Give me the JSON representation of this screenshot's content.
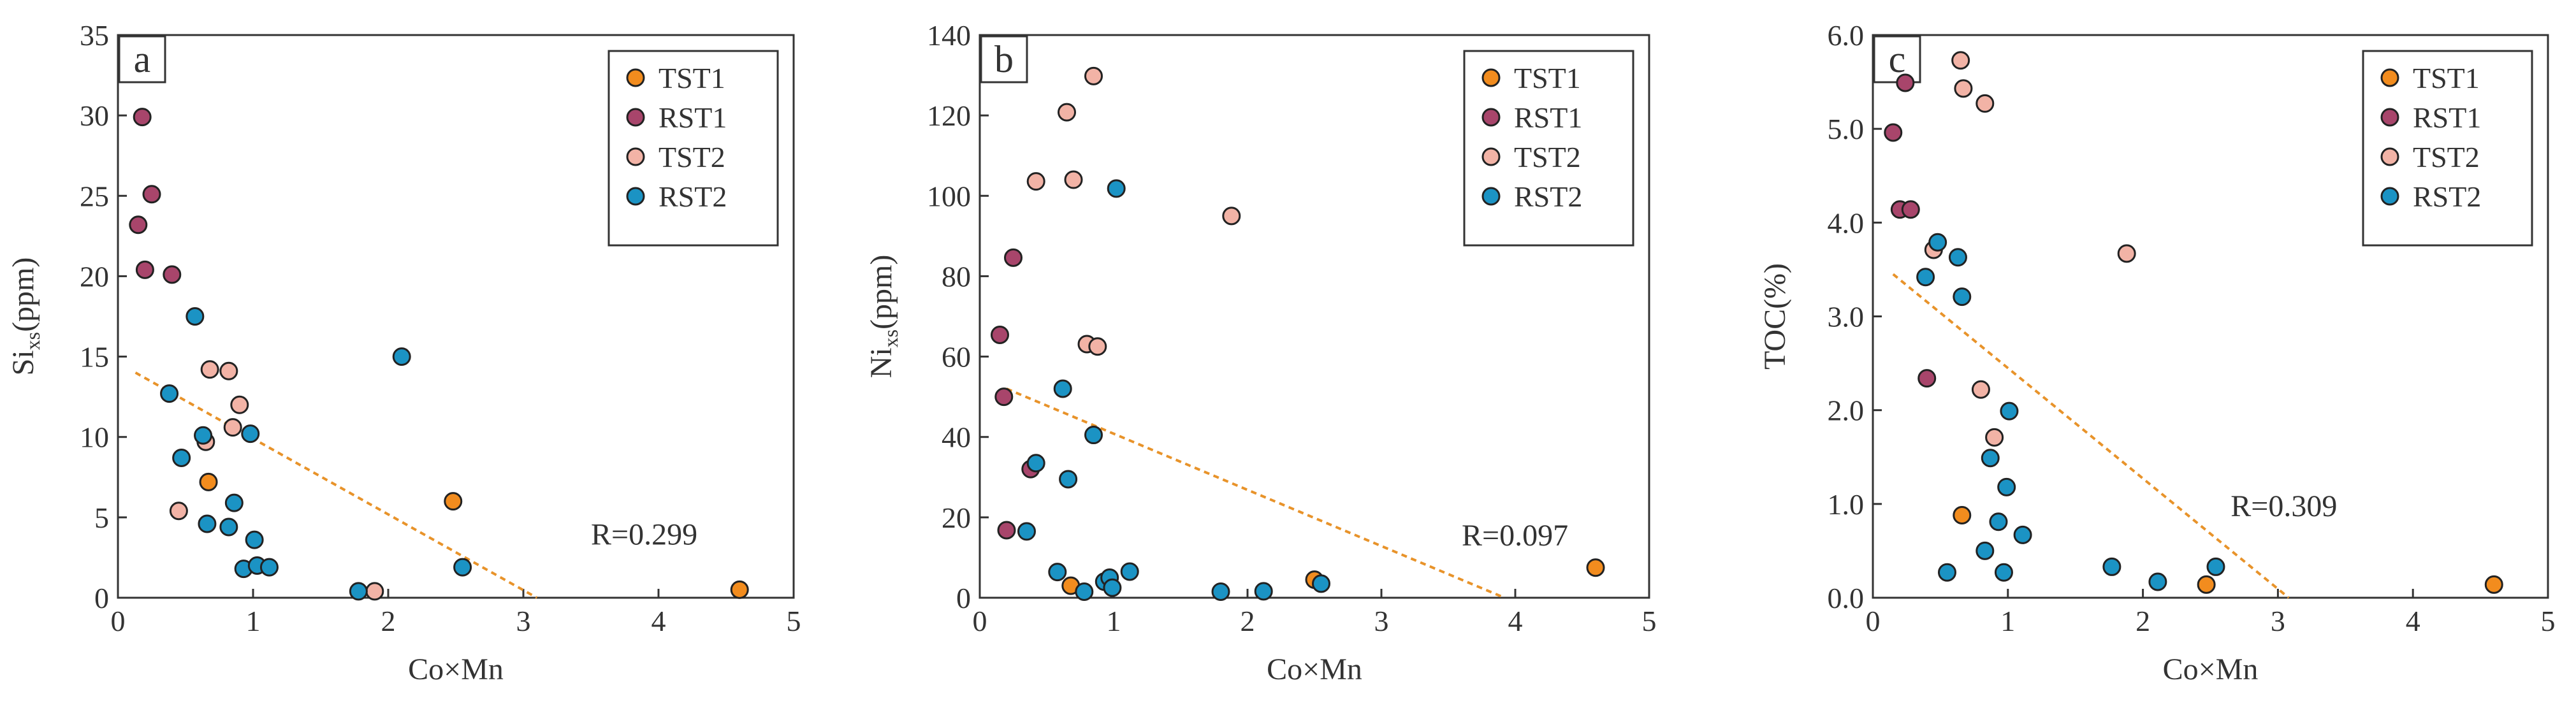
{
  "colors": {
    "TST1": "#f28c1e",
    "RST1": "#a8456b",
    "TST2": "#f2b3a6",
    "RST2": "#1b93c4",
    "trend": "#e8932a",
    "frame": "#333333"
  },
  "legend": [
    "TST1",
    "RST1",
    "TST2",
    "RST2"
  ],
  "chart_data": [
    {
      "type": "scatter",
      "panel": "a",
      "xlabel": "Co×Mn",
      "ylabel": {
        "base": "Si",
        "sub": "xs",
        "suffix": "(ppm)"
      },
      "xlim": [
        0,
        5
      ],
      "ylim": [
        0,
        35
      ],
      "xticks": [
        0,
        1,
        2,
        3,
        4,
        5
      ],
      "yticks": [
        0,
        5,
        10,
        15,
        20,
        25,
        30,
        35
      ],
      "ytick_labels": [
        "0",
        "5",
        "10",
        "15",
        "20",
        "25",
        "30",
        "35"
      ],
      "trend": {
        "x": [
          0.13,
          3.1
        ],
        "y": [
          14,
          0
        ]
      },
      "r_label": "R=0.299",
      "r_pos": [
        3.5,
        3.3
      ],
      "series": [
        {
          "name": "TST1",
          "points": [
            [
              0.67,
              7.2
            ],
            [
              2.48,
              6.0
            ],
            [
              4.6,
              0.5
            ]
          ]
        },
        {
          "name": "RST1",
          "points": [
            [
              0.15,
              23.2
            ],
            [
              0.18,
              29.9
            ],
            [
              0.2,
              20.4
            ],
            [
              0.25,
              25.1
            ],
            [
              0.4,
              20.1
            ]
          ]
        },
        {
          "name": "TST2",
          "points": [
            [
              0.45,
              5.4
            ],
            [
              0.65,
              9.7
            ],
            [
              0.68,
              14.2
            ],
            [
              0.82,
              14.1
            ],
            [
              0.85,
              10.6
            ],
            [
              0.9,
              12.0
            ],
            [
              1.9,
              0.4
            ]
          ]
        },
        {
          "name": "RST2",
          "points": [
            [
              0.38,
              12.7
            ],
            [
              0.47,
              8.7
            ],
            [
              0.57,
              17.5
            ],
            [
              0.63,
              10.1
            ],
            [
              0.66,
              4.6
            ],
            [
              0.82,
              4.4
            ],
            [
              0.86,
              5.9
            ],
            [
              0.93,
              1.8
            ],
            [
              0.98,
              10.2
            ],
            [
              1.01,
              3.6
            ],
            [
              1.03,
              2.0
            ],
            [
              1.12,
              1.9
            ],
            [
              1.78,
              0.4
            ],
            [
              2.1,
              15.0
            ],
            [
              2.55,
              1.9
            ]
          ]
        }
      ]
    },
    {
      "type": "scatter",
      "panel": "b",
      "xlabel": "Co×Mn",
      "ylabel": {
        "base": "Ni",
        "sub": "xs",
        "suffix": "(ppm)"
      },
      "xlim": [
        0,
        5
      ],
      "ylim": [
        0,
        140
      ],
      "xticks": [
        0,
        1,
        2,
        3,
        4,
        5
      ],
      "yticks": [
        0,
        20,
        40,
        60,
        80,
        100,
        120,
        140
      ],
      "ytick_labels": [
        "0",
        "20",
        "40",
        "60",
        "80",
        "100",
        "120",
        "140"
      ],
      "trend": {
        "x": [
          0.2,
          3.92
        ],
        "y": [
          52,
          0
        ]
      },
      "r_label": "R=0.097",
      "r_pos": [
        3.6,
        13
      ],
      "series": [
        {
          "name": "TST1",
          "points": [
            [
              0.68,
              3.0
            ],
            [
              2.5,
              4.5
            ],
            [
              4.6,
              7.5
            ]
          ]
        },
        {
          "name": "RST1",
          "points": [
            [
              0.15,
              65.4
            ],
            [
              0.18,
              50.0
            ],
            [
              0.2,
              16.8
            ],
            [
              0.25,
              84.6
            ],
            [
              0.38,
              32.0
            ]
          ]
        },
        {
          "name": "TST2",
          "points": [
            [
              0.42,
              103.6
            ],
            [
              0.65,
              120.8
            ],
            [
              0.7,
              104.0
            ],
            [
              0.8,
              63.1
            ],
            [
              0.85,
              129.8
            ],
            [
              0.88,
              62.5
            ],
            [
              1.88,
              95.0
            ]
          ]
        },
        {
          "name": "RST2",
          "points": [
            [
              0.35,
              16.5
            ],
            [
              0.42,
              33.5
            ],
            [
              0.58,
              6.4
            ],
            [
              0.62,
              52.0
            ],
            [
              0.66,
              29.5
            ],
            [
              0.78,
              1.5
            ],
            [
              0.85,
              40.5
            ],
            [
              0.93,
              4.0
            ],
            [
              0.97,
              5.0
            ],
            [
              0.99,
              2.5
            ],
            [
              1.02,
              101.8
            ],
            [
              1.12,
              6.5
            ],
            [
              1.8,
              1.5
            ],
            [
              2.12,
              1.6
            ],
            [
              2.55,
              3.5
            ]
          ]
        }
      ]
    },
    {
      "type": "scatter",
      "panel": "c",
      "xlabel": "Co×Mn",
      "ylabel": {
        "base": "TOC(%)",
        "sub": "",
        "suffix": ""
      },
      "xlim": [
        0,
        5
      ],
      "ylim": [
        0,
        6
      ],
      "xticks": [
        0,
        1,
        2,
        3,
        4,
        5
      ],
      "yticks": [
        0,
        1,
        2,
        3,
        4,
        5,
        6
      ],
      "ytick_labels": [
        "0.0",
        "1.0",
        "2.0",
        "3.0",
        "4.0",
        "5.0",
        "6.0"
      ],
      "trend": {
        "x": [
          0.15,
          3.08
        ],
        "y": [
          3.45,
          0
        ]
      },
      "r_label": "R=0.309",
      "r_pos": [
        2.65,
        0.87
      ],
      "series": [
        {
          "name": "TST1",
          "points": [
            [
              0.66,
              0.88
            ],
            [
              2.47,
              0.14
            ],
            [
              4.6,
              0.14
            ]
          ]
        },
        {
          "name": "RST1",
          "points": [
            [
              0.15,
              4.96
            ],
            [
              0.2,
              4.14
            ],
            [
              0.24,
              5.49
            ],
            [
              0.28,
              4.14
            ],
            [
              0.4,
              2.34
            ]
          ]
        },
        {
          "name": "TST2",
          "points": [
            [
              0.45,
              3.71
            ],
            [
              0.65,
              5.73
            ],
            [
              0.67,
              5.43
            ],
            [
              0.8,
              2.22
            ],
            [
              0.83,
              5.27
            ],
            [
              0.9,
              1.71
            ],
            [
              1.88,
              3.67
            ]
          ]
        },
        {
          "name": "RST2",
          "points": [
            [
              0.39,
              3.42
            ],
            [
              0.48,
              3.79
            ],
            [
              0.55,
              0.27
            ],
            [
              0.63,
              3.63
            ],
            [
              0.66,
              3.21
            ],
            [
              0.83,
              0.5
            ],
            [
              0.87,
              1.49
            ],
            [
              0.93,
              0.81
            ],
            [
              0.97,
              0.27
            ],
            [
              0.99,
              1.18
            ],
            [
              1.01,
              1.99
            ],
            [
              1.11,
              0.67
            ],
            [
              1.77,
              0.33
            ],
            [
              2.11,
              0.17
            ],
            [
              2.54,
              0.33
            ]
          ]
        }
      ]
    }
  ]
}
